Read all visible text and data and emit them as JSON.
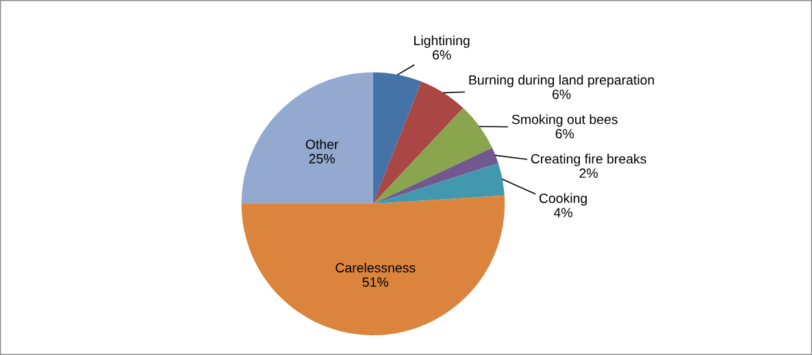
{
  "chart_data": {
    "type": "pie",
    "categories": [
      "Lightining",
      "Burning during land preparation",
      "Smoking out bees",
      "Creating fire breaks",
      "Cooking",
      "Carelessness",
      "Other"
    ],
    "values": [
      6,
      6,
      6,
      2,
      4,
      51,
      25
    ],
    "value_labels": [
      "6%",
      "6%",
      "6%",
      "2%",
      "4%",
      "51%",
      "25%"
    ],
    "colors": [
      "#4572a7",
      "#aa4643",
      "#89a54e",
      "#71588f",
      "#4198af",
      "#db843d",
      "#93a9cf"
    ]
  }
}
